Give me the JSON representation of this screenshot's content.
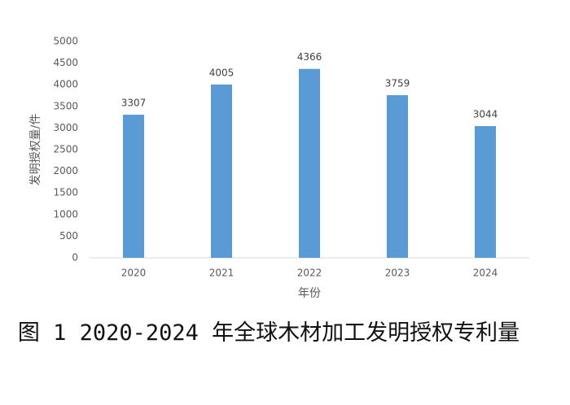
{
  "chart_data": {
    "type": "bar",
    "caption": "图 1 2020-2024 年全球木材加工发明授权专利量",
    "x_label": "年份",
    "y_label": "发明授权量/件",
    "categories": [
      "2020",
      "2021",
      "2022",
      "2023",
      "2024"
    ],
    "values": [
      3307,
      4005,
      4366,
      3759,
      3044
    ],
    "color": "#5b9bd5",
    "ylim": [
      0,
      5000
    ],
    "yticks": [
      0,
      500,
      1000,
      1500,
      2000,
      2500,
      3000,
      3500,
      4000,
      4500,
      5000
    ],
    "grid": false
  }
}
